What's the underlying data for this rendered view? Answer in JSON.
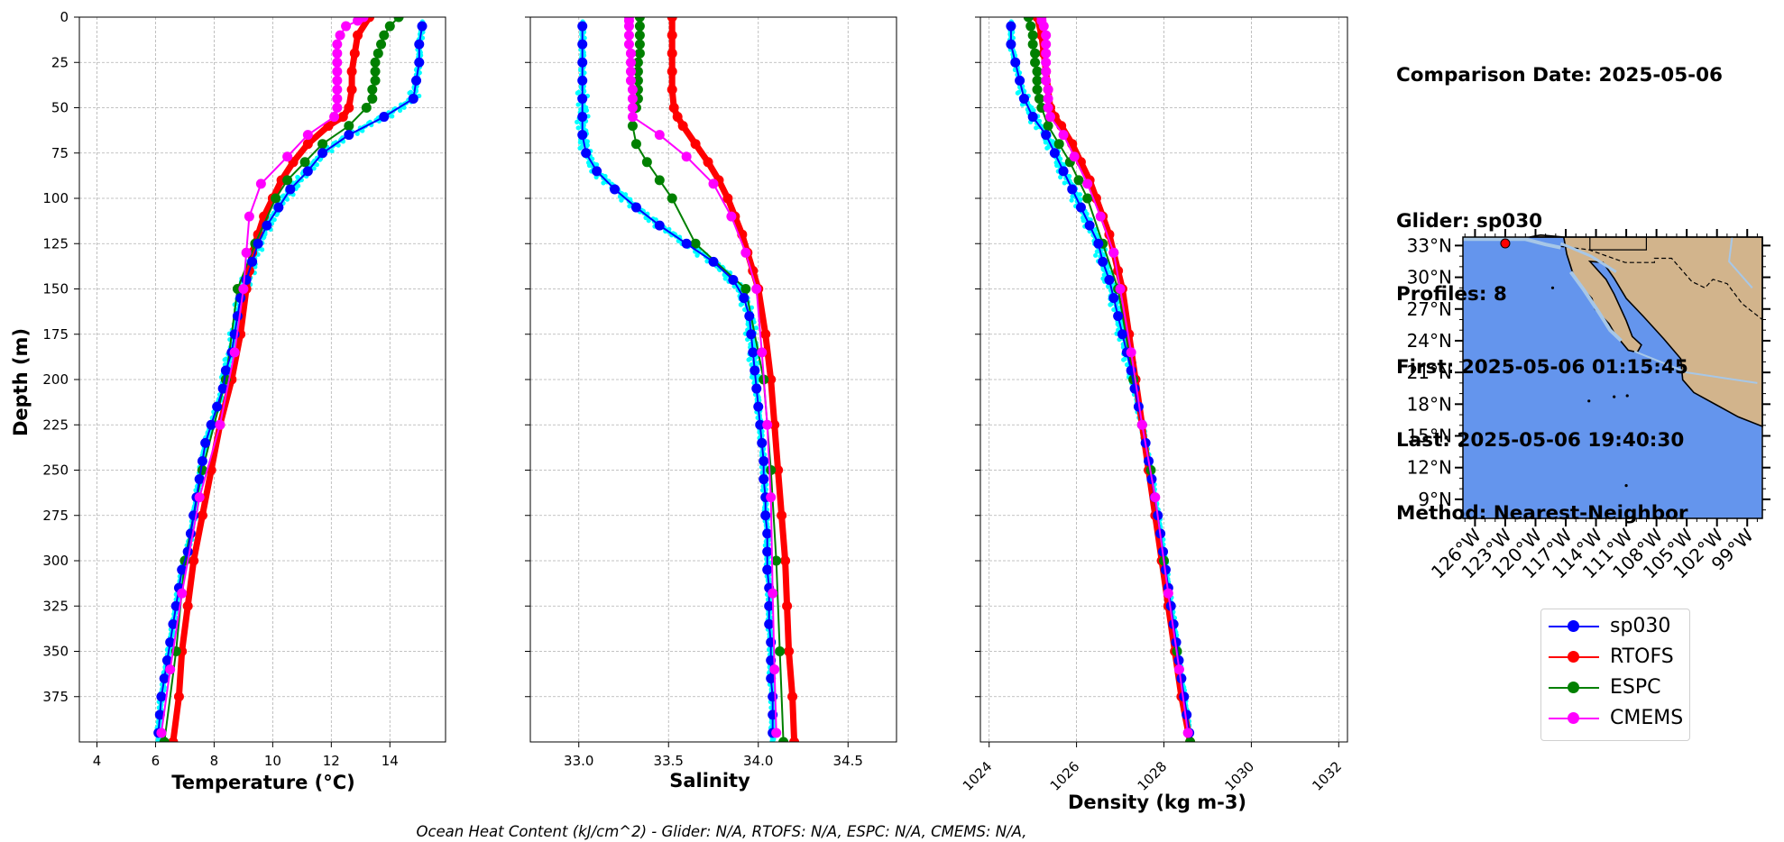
{
  "info": {
    "comparison_date": "Comparison Date: 2025-05-06",
    "glider": "Glider: sp030",
    "profiles": "Profiles: 8",
    "first": "First: 2025-05-06 01:15:45",
    "last": "Last: 2025-05-06 19:40:30",
    "method": "Method: Nearest-Neighbor"
  },
  "footer": "Ocean Heat Content (kJ/cm^2) - Glider: N/A,  RTOFS: N/A,  ESPC: N/A,  CMEMS: N/A,",
  "colors": {
    "sp030": "#0000ff",
    "RTOFS": "#ff0000",
    "ESPC": "#008000",
    "CMEMS": "#ff00ff",
    "glider_raw": "#00ffff",
    "ocean": "#6495ed",
    "shelf": "#a7c7e7",
    "land": "#d2b48c"
  },
  "legend": [
    "sp030",
    "RTOFS",
    "ESPC",
    "CMEMS"
  ],
  "chart_data": [
    {
      "type": "line",
      "xlabel": "Temperature (°C)",
      "ylabel": "Depth (m)",
      "xlim": [
        3.4,
        15.9
      ],
      "ylim": [
        400,
        0
      ],
      "xticks": [
        4,
        6,
        8,
        10,
        12,
        14
      ],
      "yticks": [
        0,
        25,
        50,
        75,
        100,
        125,
        150,
        175,
        200,
        225,
        250,
        275,
        300,
        325,
        350,
        375
      ],
      "grid": true,
      "series": [
        {
          "name": "sp030",
          "depth": [
            5,
            15,
            25,
            35,
            45,
            55,
            65,
            75,
            85,
            95,
            105,
            115,
            125,
            135,
            145,
            155,
            165,
            175,
            185,
            195,
            205,
            215,
            225,
            235,
            245,
            255,
            265,
            275,
            285,
            295,
            305,
            315,
            325,
            335,
            345,
            355,
            365,
            375,
            385,
            395
          ],
          "values": [
            15.1,
            15.0,
            15.0,
            14.9,
            14.8,
            13.8,
            12.6,
            11.7,
            11.2,
            10.6,
            10.2,
            9.8,
            9.5,
            9.3,
            9.1,
            8.9,
            8.8,
            8.7,
            8.6,
            8.4,
            8.3,
            8.1,
            7.9,
            7.7,
            7.6,
            7.5,
            7.4,
            7.3,
            7.2,
            7.1,
            6.9,
            6.8,
            6.7,
            6.6,
            6.5,
            6.4,
            6.3,
            6.2,
            6.15,
            6.1
          ]
        },
        {
          "name": "RTOFS",
          "depth": [
            0,
            10,
            20,
            30,
            40,
            50,
            55,
            60,
            70,
            80,
            90,
            100,
            110,
            120,
            130,
            140,
            150,
            175,
            200,
            225,
            250,
            275,
            300,
            325,
            350,
            375,
            400
          ],
          "values": [
            13.3,
            12.9,
            12.8,
            12.7,
            12.7,
            12.6,
            12.4,
            11.9,
            11.2,
            10.7,
            10.3,
            10.0,
            9.7,
            9.5,
            9.3,
            9.2,
            9.1,
            8.9,
            8.6,
            8.2,
            7.9,
            7.6,
            7.3,
            7.1,
            6.9,
            6.8,
            6.6
          ]
        },
        {
          "name": "ESPC",
          "depth": [
            0,
            5,
            10,
            15,
            20,
            25,
            30,
            35,
            40,
            45,
            50,
            60,
            70,
            80,
            90,
            100,
            125,
            150,
            200,
            250,
            300,
            350,
            400
          ],
          "values": [
            14.3,
            14.0,
            13.8,
            13.7,
            13.6,
            13.5,
            13.5,
            13.5,
            13.4,
            13.4,
            13.2,
            12.6,
            11.7,
            11.1,
            10.5,
            10.1,
            9.4,
            8.8,
            8.4,
            7.6,
            7.0,
            6.7,
            6.3
          ]
        },
        {
          "name": "CMEMS",
          "depth": [
            0,
            2,
            5,
            10,
            15,
            20,
            25,
            30,
            35,
            40,
            45,
            50,
            55,
            65,
            77,
            92,
            110,
            130,
            150,
            185,
            225,
            265,
            318,
            360,
            395
          ],
          "values": [
            13.1,
            12.9,
            12.5,
            12.3,
            12.2,
            12.2,
            12.2,
            12.2,
            12.2,
            12.2,
            12.2,
            12.2,
            12.1,
            11.2,
            10.5,
            9.6,
            9.2,
            9.1,
            9.0,
            8.7,
            8.2,
            7.5,
            6.9,
            6.5,
            6.2
          ]
        }
      ]
    },
    {
      "type": "line",
      "xlabel": "Salinity",
      "xlim": [
        32.73,
        34.77
      ],
      "ylim": [
        400,
        0
      ],
      "xticks": [
        33.0,
        33.5,
        34.0,
        34.5
      ],
      "grid": true,
      "series": [
        {
          "name": "sp030",
          "depth": [
            5,
            15,
            25,
            35,
            45,
            55,
            65,
            75,
            85,
            95,
            105,
            115,
            125,
            135,
            145,
            155,
            165,
            175,
            185,
            195,
            205,
            215,
            225,
            235,
            245,
            255,
            265,
            275,
            285,
            295,
            305,
            315,
            325,
            335,
            345,
            355,
            365,
            375,
            385,
            395
          ],
          "values": [
            33.02,
            33.02,
            33.02,
            33.02,
            33.02,
            33.02,
            33.02,
            33.04,
            33.1,
            33.2,
            33.32,
            33.45,
            33.6,
            33.75,
            33.86,
            33.92,
            33.95,
            33.96,
            33.97,
            33.98,
            33.99,
            34.0,
            34.01,
            34.02,
            34.03,
            34.03,
            34.04,
            34.04,
            34.05,
            34.05,
            34.05,
            34.06,
            34.06,
            34.06,
            34.07,
            34.07,
            34.07,
            34.08,
            34.08,
            34.08
          ]
        },
        {
          "name": "RTOFS",
          "depth": [
            0,
            10,
            20,
            30,
            40,
            50,
            55,
            60,
            70,
            80,
            90,
            100,
            110,
            120,
            130,
            140,
            150,
            175,
            200,
            225,
            250,
            275,
            300,
            325,
            350,
            375,
            400
          ],
          "values": [
            33.52,
            33.52,
            33.52,
            33.52,
            33.52,
            33.53,
            33.55,
            33.58,
            33.65,
            33.72,
            33.78,
            33.83,
            33.87,
            33.91,
            33.94,
            33.97,
            34.0,
            34.04,
            34.07,
            34.09,
            34.11,
            34.13,
            34.15,
            34.16,
            34.17,
            34.19,
            34.2
          ]
        },
        {
          "name": "ESPC",
          "depth": [
            0,
            5,
            10,
            15,
            20,
            25,
            30,
            35,
            40,
            45,
            50,
            60,
            70,
            80,
            90,
            100,
            125,
            150,
            200,
            250,
            300,
            350,
            400
          ],
          "values": [
            33.34,
            33.34,
            33.34,
            33.34,
            33.34,
            33.33,
            33.33,
            33.33,
            33.33,
            33.33,
            33.32,
            33.3,
            33.32,
            33.38,
            33.45,
            33.52,
            33.65,
            33.93,
            34.03,
            34.07,
            34.1,
            34.12,
            34.14
          ]
        },
        {
          "name": "CMEMS",
          "depth": [
            0,
            2,
            5,
            10,
            15,
            20,
            25,
            30,
            35,
            40,
            45,
            50,
            55,
            65,
            77,
            92,
            110,
            130,
            150,
            185,
            225,
            265,
            318,
            360,
            395
          ],
          "values": [
            33.28,
            33.28,
            33.28,
            33.28,
            33.28,
            33.29,
            33.29,
            33.29,
            33.29,
            33.3,
            33.3,
            33.3,
            33.3,
            33.45,
            33.6,
            33.75,
            33.85,
            33.93,
            33.99,
            34.02,
            34.05,
            34.07,
            34.08,
            34.09,
            34.1
          ]
        }
      ]
    },
    {
      "type": "line",
      "xlabel": "Density (kg m-3)",
      "xlim": [
        1023.8,
        1032.2
      ],
      "ylim": [
        400,
        0
      ],
      "xticks": [
        1024,
        1026,
        1028,
        1030,
        1032
      ],
      "grid": true,
      "series": [
        {
          "name": "sp030",
          "depth": [
            5,
            15,
            25,
            35,
            45,
            55,
            65,
            75,
            85,
            95,
            105,
            115,
            125,
            135,
            145,
            155,
            165,
            175,
            185,
            195,
            205,
            215,
            225,
            235,
            245,
            255,
            265,
            275,
            285,
            295,
            305,
            315,
            325,
            335,
            345,
            355,
            365,
            375,
            385,
            395
          ],
          "values": [
            1024.5,
            1024.5,
            1024.6,
            1024.7,
            1024.8,
            1025.0,
            1025.3,
            1025.5,
            1025.7,
            1025.9,
            1026.1,
            1026.3,
            1026.5,
            1026.6,
            1026.75,
            1026.85,
            1026.95,
            1027.05,
            1027.15,
            1027.25,
            1027.33,
            1027.42,
            1027.5,
            1027.58,
            1027.65,
            1027.72,
            1027.79,
            1027.86,
            1027.92,
            1027.98,
            1028.04,
            1028.1,
            1028.16,
            1028.22,
            1028.28,
            1028.34,
            1028.4,
            1028.46,
            1028.52,
            1028.58
          ]
        },
        {
          "name": "RTOFS",
          "depth": [
            0,
            10,
            20,
            30,
            40,
            50,
            55,
            60,
            70,
            80,
            90,
            100,
            110,
            120,
            130,
            140,
            150,
            175,
            200,
            225,
            250,
            275,
            300,
            325,
            350,
            375,
            400
          ],
          "values": [
            1025.1,
            1025.2,
            1025.25,
            1025.3,
            1025.35,
            1025.4,
            1025.5,
            1025.65,
            1025.9,
            1026.1,
            1026.3,
            1026.45,
            1026.6,
            1026.75,
            1026.85,
            1026.95,
            1027.05,
            1027.2,
            1027.35,
            1027.5,
            1027.65,
            1027.8,
            1027.95,
            1028.1,
            1028.25,
            1028.4,
            1028.6
          ]
        },
        {
          "name": "ESPC",
          "depth": [
            0,
            5,
            10,
            15,
            20,
            25,
            30,
            35,
            40,
            45,
            50,
            60,
            70,
            80,
            90,
            100,
            125,
            150,
            200,
            250,
            300,
            350,
            400
          ],
          "values": [
            1024.9,
            1024.95,
            1025.0,
            1025.0,
            1025.05,
            1025.05,
            1025.1,
            1025.1,
            1025.1,
            1025.15,
            1025.2,
            1025.35,
            1025.6,
            1025.85,
            1026.05,
            1026.25,
            1026.6,
            1026.95,
            1027.3,
            1027.7,
            1028.0,
            1028.3,
            1028.6
          ]
        },
        {
          "name": "CMEMS",
          "depth": [
            0,
            2,
            5,
            10,
            15,
            20,
            25,
            30,
            35,
            40,
            45,
            50,
            55,
            65,
            77,
            92,
            110,
            130,
            150,
            185,
            225,
            265,
            318,
            360,
            395
          ],
          "values": [
            1025.2,
            1025.2,
            1025.25,
            1025.3,
            1025.3,
            1025.3,
            1025.3,
            1025.3,
            1025.3,
            1025.35,
            1025.35,
            1025.35,
            1025.4,
            1025.7,
            1025.95,
            1026.25,
            1026.55,
            1026.85,
            1027.0,
            1027.25,
            1027.5,
            1027.8,
            1028.1,
            1028.35,
            1028.55
          ]
        }
      ]
    }
  ],
  "map": {
    "lat_labels": [
      "33°N",
      "30°N",
      "27°N",
      "24°N",
      "21°N",
      "18°N",
      "15°N",
      "12°N",
      "9°N"
    ],
    "lon_labels": [
      "126°W",
      "123°W",
      "120°W",
      "117°W",
      "114°W",
      "111°W",
      "108°W",
      "105°W",
      "102°W",
      "99°W"
    ],
    "glider_location": {
      "lon": -123.0,
      "lat": 33.2
    }
  }
}
